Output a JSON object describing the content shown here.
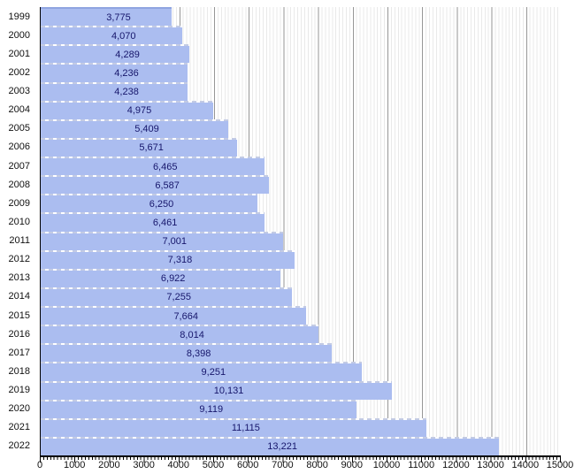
{
  "chart_data": {
    "type": "bar",
    "orientation": "horizontal",
    "categories": [
      "1999",
      "2000",
      "2001",
      "2002",
      "2003",
      "2004",
      "2005",
      "2006",
      "2007",
      "2008",
      "2009",
      "2010",
      "2011",
      "2012",
      "2013",
      "2014",
      "2015",
      "2016",
      "2017",
      "2018",
      "2019",
      "2020",
      "2021",
      "2022"
    ],
    "values": [
      3775,
      4070,
      4289,
      4236,
      4238,
      4975,
      5409,
      5671,
      6465,
      6587,
      6250,
      6461,
      7001,
      7318,
      6922,
      7255,
      7664,
      8014,
      8398,
      9251,
      10131,
      9119,
      11115,
      13221
    ],
    "value_labels": [
      "3,775",
      "4,070",
      "4,289",
      "4,236",
      "4,238",
      "4,975",
      "5,409",
      "5,671",
      "6,465",
      "6,587",
      "6,250",
      "6,461",
      "7,001",
      "7,318",
      "6,922",
      "7,255",
      "7,664",
      "8,014",
      "8,398",
      "9,251",
      "10,131",
      "9,119",
      "11,115",
      "13,221"
    ],
    "xlim": [
      0,
      15000
    ],
    "x_tick_labels": [
      "0",
      "1000",
      "2000",
      "3000",
      "4000",
      "5000",
      "6000",
      "7000",
      "8000",
      "9000",
      "10000",
      "11000",
      "12000",
      "13000",
      "14000",
      "15000"
    ],
    "grid": {
      "minor_step": 100,
      "major_step": 1000,
      "minor_on": true,
      "major_on": true
    },
    "legend": null
  },
  "colors": {
    "bar_fill": "#abbdf0",
    "bar_separator_dash": "#c3cbe4",
    "bar_top_edge": "#8fa4e0",
    "value_label": "#16166b",
    "axis": "#000000",
    "grid_major": "#969696",
    "grid_minor": "#e9e9e9",
    "background": "#ffffff"
  }
}
